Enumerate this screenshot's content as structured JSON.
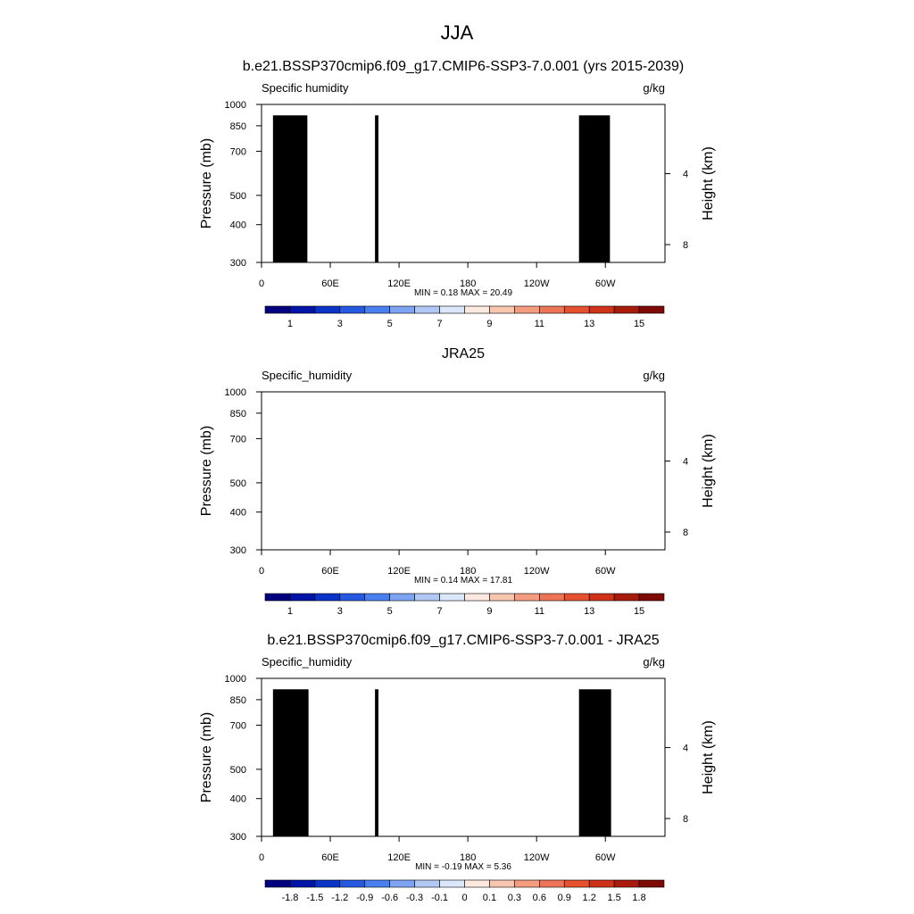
{
  "page": {
    "main_title": "JJA"
  },
  "panels": [
    {
      "title": "b.e21.BSSP370cmip6.f09_g17.CMIP6-SSP3-7.0.001 (yrs 2015-2039)",
      "left_label": "Specific humidity",
      "units_label": "g/kg",
      "stats": "MIN =   0.18  MAX =  20.49"
    },
    {
      "title": "JRA25",
      "left_label": "Specific_humidity",
      "units_label": "g/kg",
      "stats": "MIN =   0.14  MAX =  17.81"
    },
    {
      "title": "b.e21.BSSP370cmip6.f09_g17.CMIP6-SSP3-7.0.001 - JRA25",
      "left_label": "Specific_humidity",
      "units_label": "g/kg",
      "stats": "MIN =  -0.19  MAX =   5.36"
    }
  ],
  "colors": {
    "palette_main": [
      "#00007f",
      "#0015a8",
      "#0a34c8",
      "#2459e0",
      "#4a7ff0",
      "#7ea3f2",
      "#b1c8f5",
      "#dae6fa",
      "#fde9df",
      "#f8c5ae",
      "#f39c80",
      "#ed7457",
      "#e5502f",
      "#cf3317",
      "#a81b0c",
      "#7d0a05"
    ],
    "palette_diff": [
      "#00007f",
      "#0015a8",
      "#0a34c8",
      "#2459e0",
      "#4a7ff0",
      "#7ea3f2",
      "#b1c8f5",
      "#dae6fa",
      "#fde9df",
      "#f8c5ae",
      "#f39c80",
      "#ed7457",
      "#e5502f",
      "#cf3317",
      "#a81b0c",
      "#7d0a05"
    ],
    "terrain_mask": "#000000"
  },
  "chart_data": [
    {
      "type": "heatmap",
      "title": "b.e21.BSSP370cmip6.f09_g17.CMIP6-SSP3-7.0.001 (yrs 2015-2039)",
      "variable": "Specific humidity",
      "units": "g/kg",
      "xlabel": "",
      "ylabel": "Pressure (mb)",
      "y2label": "Height (km)",
      "x_ticks": [
        "0",
        "60E",
        "120E",
        "180",
        "120W",
        "60W"
      ],
      "x_tick_lon": [
        0,
        60,
        120,
        180,
        240,
        300
      ],
      "xlim": [
        0,
        352
      ],
      "y_ticks": [
        300,
        400,
        500,
        700,
        850,
        1000
      ],
      "ylim": [
        1000,
        300
      ],
      "y_log": true,
      "y2_ticks": [
        8,
        4
      ],
      "min": 0.18,
      "max": 20.49,
      "contour_levels": [
        1,
        2,
        3,
        4,
        5,
        6,
        7,
        8,
        9,
        10,
        11,
        12,
        13,
        14,
        15
      ],
      "colorbar_labels": [
        "1",
        "3",
        "5",
        "7",
        "9",
        "11",
        "13",
        "15"
      ],
      "terrain_blocks": [
        {
          "lon_start": 10,
          "lon_end": 40,
          "top_mb": 920
        },
        {
          "lon_start": 27,
          "lon_end": 35,
          "top_mb": 860
        },
        {
          "lon_start": 99,
          "lon_end": 102,
          "top_mb": 920
        },
        {
          "lon_start": 277,
          "lon_end": 304,
          "top_mb": 920
        }
      ]
    },
    {
      "type": "heatmap",
      "title": "JRA25",
      "variable": "Specific_humidity",
      "units": "g/kg",
      "xlabel": "",
      "ylabel": "Pressure (mb)",
      "y2label": "Height (km)",
      "x_ticks": [
        "0",
        "60E",
        "120E",
        "180",
        "120W",
        "60W"
      ],
      "x_tick_lon": [
        0,
        60,
        120,
        180,
        240,
        300
      ],
      "xlim": [
        0,
        352
      ],
      "y_ticks": [
        300,
        400,
        500,
        700,
        850,
        1000
      ],
      "ylim": [
        1000,
        300
      ],
      "y_log": true,
      "y2_ticks": [
        8,
        4
      ],
      "min": 0.14,
      "max": 17.81,
      "contour_levels": [
        1,
        2,
        3,
        4,
        5,
        6,
        7,
        8,
        9,
        10,
        11,
        12,
        13,
        14,
        15
      ],
      "colorbar_labels": [
        "1",
        "3",
        "5",
        "7",
        "9",
        "11",
        "13",
        "15"
      ],
      "terrain_blocks": []
    },
    {
      "type": "heatmap",
      "title": "b.e21.BSSP370cmip6.f09_g17.CMIP6-SSP3-7.0.001 - JRA25",
      "variable": "Specific_humidity",
      "units": "g/kg",
      "xlabel": "",
      "ylabel": "Pressure (mb)",
      "y2label": "Height (km)",
      "x_ticks": [
        "0",
        "60E",
        "120E",
        "180",
        "120W",
        "60W"
      ],
      "x_tick_lon": [
        0,
        60,
        120,
        180,
        240,
        300
      ],
      "xlim": [
        0,
        352
      ],
      "y_ticks": [
        300,
        400,
        500,
        700,
        850,
        1000
      ],
      "ylim": [
        1000,
        300
      ],
      "y_log": true,
      "y2_ticks": [
        8,
        4
      ],
      "min": -0.19,
      "max": 5.36,
      "contour_levels": [
        -1.8,
        -1.5,
        -1.2,
        -0.9,
        -0.6,
        -0.3,
        -0.1,
        0,
        0.1,
        0.3,
        0.6,
        0.9,
        1.2,
        1.5,
        1.8
      ],
      "colorbar_labels": [
        "-1.8",
        "-1.5",
        "-1.2",
        "-0.9",
        "-0.6",
        "-0.3",
        "-0.1",
        "0",
        "0.1",
        "0.3",
        "0.6",
        "0.9",
        "1.2",
        "1.5",
        "1.8"
      ],
      "terrain_blocks": [
        {
          "lon_start": 10,
          "lon_end": 41,
          "top_mb": 920
        },
        {
          "lon_start": 28,
          "lon_end": 35,
          "top_mb": 860
        },
        {
          "lon_start": 99,
          "lon_end": 102,
          "top_mb": 920
        },
        {
          "lon_start": 277,
          "lon_end": 305,
          "top_mb": 920
        }
      ]
    }
  ]
}
